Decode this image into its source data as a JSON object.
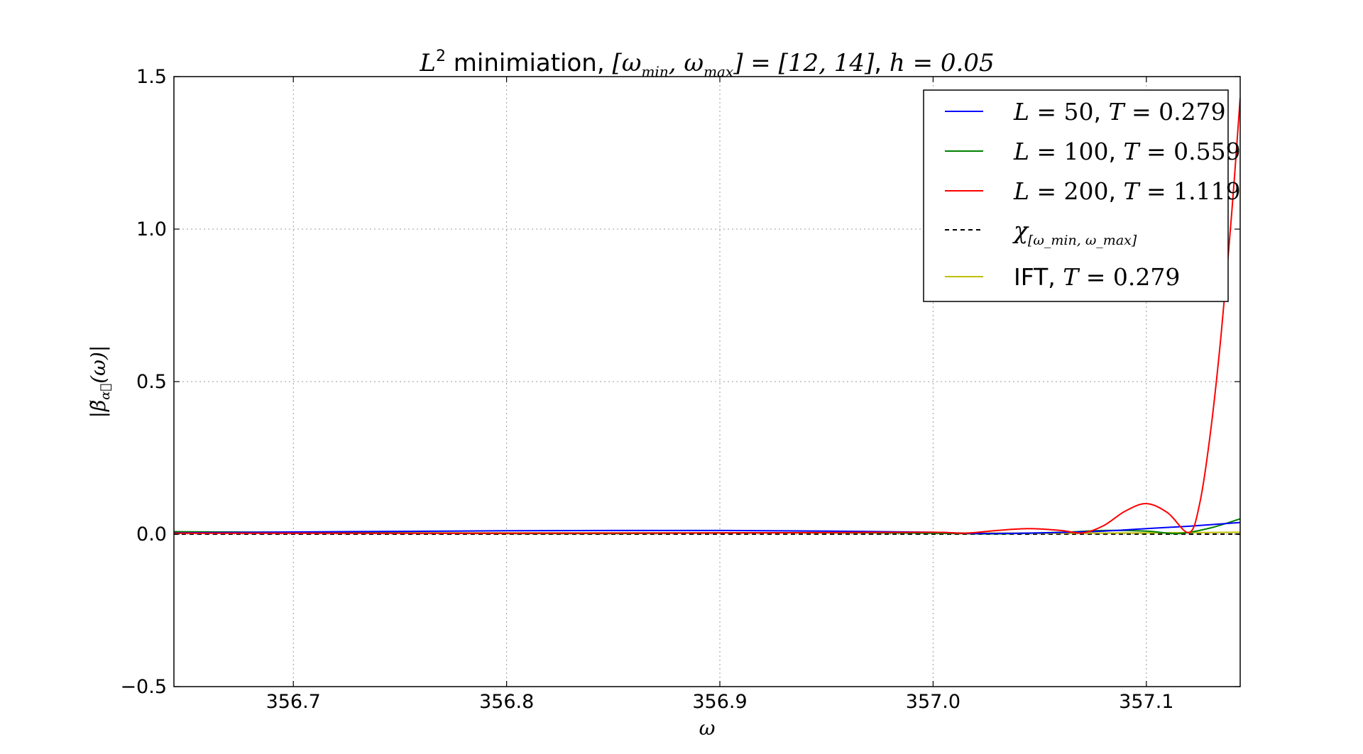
{
  "chart_data": {
    "type": "line",
    "title": "L² minimiation, [ω_min, ω_max] = [12, 14], h = 0.05",
    "xlabel": "ω",
    "ylabel": "|β̃_α⃗(ω)|",
    "xlim": [
      356.644,
      357.144
    ],
    "ylim": [
      -0.5,
      1.5
    ],
    "xticks": [
      "356.7",
      "356.8",
      "356.9",
      "357.0",
      "357.1"
    ],
    "yticks": [
      "−0.5",
      "0.0",
      "0.5",
      "1.0",
      "1.5"
    ],
    "grid": true,
    "legend_position": "top-right",
    "series": [
      {
        "name": "L = 50, T = 0.279",
        "color": "#0000ff",
        "style": "solid",
        "points": [
          [
            356.644,
            0.004
          ],
          [
            356.7,
            0.007
          ],
          [
            356.75,
            0.009
          ],
          [
            356.8,
            0.011
          ],
          [
            356.85,
            0.012
          ],
          [
            356.9,
            0.012
          ],
          [
            356.95,
            0.01
          ],
          [
            357.0,
            0.006
          ],
          [
            357.02,
            0.002
          ],
          [
            357.05,
            0.004
          ],
          [
            357.08,
            0.01
          ],
          [
            357.1,
            0.018
          ],
          [
            357.12,
            0.026
          ],
          [
            357.144,
            0.038
          ]
        ]
      },
      {
        "name": "L = 100, T = 0.559",
        "color": "#008000",
        "style": "solid",
        "points": [
          [
            356.644,
            0.008
          ],
          [
            356.7,
            0.006
          ],
          [
            356.75,
            0.004
          ],
          [
            356.8,
            0.002
          ],
          [
            356.85,
            0.002
          ],
          [
            356.9,
            0.004
          ],
          [
            356.95,
            0.005
          ],
          [
            357.0,
            0.003
          ],
          [
            357.03,
            0.001
          ],
          [
            357.06,
            0.006
          ],
          [
            357.08,
            0.012
          ],
          [
            357.1,
            0.01
          ],
          [
            357.115,
            0.002
          ],
          [
            357.13,
            0.02
          ],
          [
            357.144,
            0.05
          ]
        ]
      },
      {
        "name": "L = 200, T = 1.119",
        "color": "#ff0000",
        "style": "solid",
        "points": [
          [
            356.644,
            0.003
          ],
          [
            356.7,
            0.003
          ],
          [
            356.8,
            0.003
          ],
          [
            356.9,
            0.004
          ],
          [
            356.95,
            0.005
          ],
          [
            357.0,
            0.006
          ],
          [
            357.015,
            0.003
          ],
          [
            357.03,
            0.012
          ],
          [
            357.045,
            0.018
          ],
          [
            357.06,
            0.012
          ],
          [
            357.07,
            0.004
          ],
          [
            357.08,
            0.028
          ],
          [
            357.09,
            0.075
          ],
          [
            357.1,
            0.1
          ],
          [
            357.11,
            0.07
          ],
          [
            357.12,
            0.005
          ],
          [
            357.125,
            0.1
          ],
          [
            357.13,
            0.33
          ],
          [
            357.135,
            0.65
          ],
          [
            357.14,
            1.05
          ],
          [
            357.144,
            1.43
          ]
        ]
      },
      {
        "name": "χ[ω_min, ω_max]",
        "color": "#000000",
        "style": "dashed",
        "points": [
          [
            356.644,
            0.0
          ],
          [
            357.144,
            0.0
          ]
        ]
      },
      {
        "name": "IFT, T = 0.279",
        "color": "#bfbf00",
        "style": "solid",
        "points": [
          [
            356.644,
            0.005
          ],
          [
            356.8,
            0.004
          ],
          [
            356.9,
            0.004
          ],
          [
            357.0,
            0.004
          ],
          [
            357.05,
            0.003
          ],
          [
            357.1,
            0.004
          ],
          [
            357.144,
            0.006
          ]
        ]
      }
    ],
    "legend": [
      {
        "prefix": "",
        "math1": "L",
        "eq1": " = 50",
        "sep": ", ",
        "math2": "T",
        "eq2": " = 0.279"
      },
      {
        "prefix": "",
        "math1": "L",
        "eq1": " = 100",
        "sep": ", ",
        "math2": "T",
        "eq2": " = 0.559"
      },
      {
        "prefix": "",
        "math1": "L",
        "eq1": " = 200",
        "sep": ", ",
        "math2": "T",
        "eq2": " = 1.119"
      },
      {
        "prefix": "",
        "math1": "χ",
        "eq1": "",
        "sep": "",
        "math2": "",
        "eq2": "",
        "sub": "[ω_min, ω_max]"
      },
      {
        "prefix": "IFT",
        "math1": "",
        "eq1": "",
        "sep": ", ",
        "math2": "T",
        "eq2": " = 0.279"
      }
    ]
  }
}
